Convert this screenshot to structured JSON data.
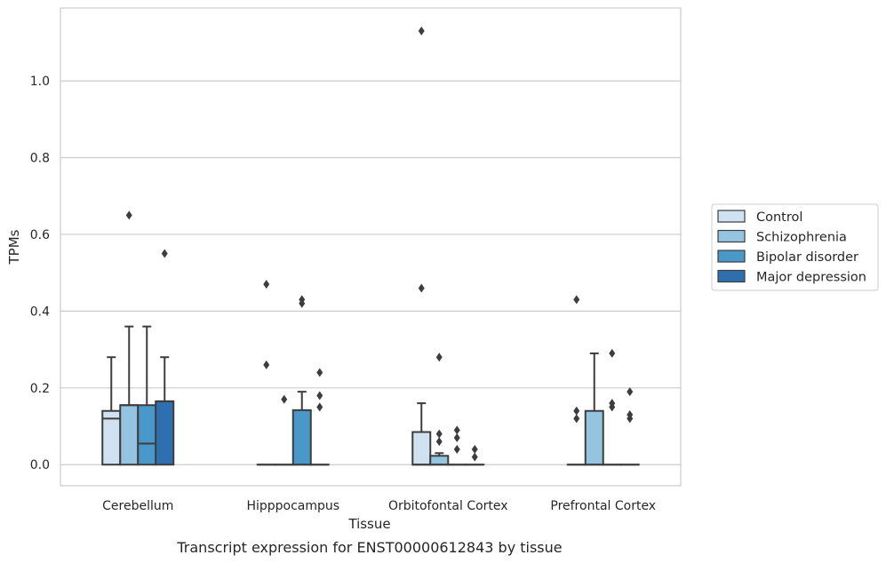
{
  "caption": "Transcript expression for ENST00000612843 by tissue",
  "colors": {
    "Control": "#d0e1f2",
    "Schizophrenia": "#94c4df",
    "Bipolar disorder": "#4a98c9",
    "Major depression": "#2e6fb0",
    "grid": "#cccccc",
    "line": "#3d3d3d",
    "frame": "#cccccc"
  },
  "chart_data": {
    "type": "box",
    "xlabel": "Tissue",
    "ylabel": "TPMs",
    "ylim": [
      -0.055,
      1.19
    ],
    "yticks": [
      0.0,
      0.2,
      0.4,
      0.6,
      0.8,
      1.0
    ],
    "ytick_labels": [
      "0.0",
      "0.2",
      "0.4",
      "0.6",
      "0.8",
      "1.0"
    ],
    "grid": true,
    "legend_position": "right",
    "categories": [
      "Cerebellum",
      "Hipppocampus",
      "Orbitofontal Cortex",
      "Prefrontal Cortex"
    ],
    "hue_order": [
      "Control",
      "Schizophrenia",
      "Bipolar disorder",
      "Major depression"
    ],
    "boxes": [
      {
        "category": "Cerebellum",
        "series": "Control",
        "q1": 0.0,
        "median": 0.12,
        "q3": 0.14,
        "whisker_low": 0.0,
        "whisker_high": 0.28,
        "outliers": []
      },
      {
        "category": "Cerebellum",
        "series": "Schizophrenia",
        "q1": 0.0,
        "median": 0.155,
        "q3": 0.155,
        "whisker_low": 0.0,
        "whisker_high": 0.36,
        "outliers": [
          0.65
        ]
      },
      {
        "category": "Cerebellum",
        "series": "Bipolar disorder",
        "q1": 0.0,
        "median": 0.055,
        "q3": 0.155,
        "whisker_low": 0.0,
        "whisker_high": 0.36,
        "outliers": []
      },
      {
        "category": "Cerebellum",
        "series": "Major depression",
        "q1": 0.0,
        "median": 0.165,
        "q3": 0.165,
        "whisker_low": 0.0,
        "whisker_high": 0.28,
        "outliers": [
          0.55
        ]
      },
      {
        "category": "Hipppocampus",
        "series": "Control",
        "q1": 0.0,
        "median": 0.0,
        "q3": 0.0,
        "whisker_low": 0.0,
        "whisker_high": 0.0,
        "outliers": [
          0.26,
          0.47
        ]
      },
      {
        "category": "Hipppocampus",
        "series": "Schizophrenia",
        "q1": 0.0,
        "median": 0.0,
        "q3": 0.0,
        "whisker_low": 0.0,
        "whisker_high": 0.0,
        "outliers": [
          0.17
        ]
      },
      {
        "category": "Hipppocampus",
        "series": "Bipolar disorder",
        "q1": 0.0,
        "median": 0.0,
        "q3": 0.142,
        "whisker_low": 0.0,
        "whisker_high": 0.19,
        "outliers": [
          0.42,
          0.43
        ]
      },
      {
        "category": "Hipppocampus",
        "series": "Major depression",
        "q1": 0.0,
        "median": 0.0,
        "q3": 0.0,
        "whisker_low": 0.0,
        "whisker_high": 0.0,
        "outliers": [
          0.15,
          0.18,
          0.24
        ]
      },
      {
        "category": "Orbitofontal Cortex",
        "series": "Control",
        "q1": 0.0,
        "median": 0.0,
        "q3": 0.085,
        "whisker_low": 0.0,
        "whisker_high": 0.16,
        "outliers": [
          0.46,
          1.13
        ]
      },
      {
        "category": "Orbitofontal Cortex",
        "series": "Schizophrenia",
        "q1": 0.0,
        "median": 0.0,
        "q3": 0.023,
        "whisker_low": 0.0,
        "whisker_high": 0.03,
        "outliers": [
          0.06,
          0.08,
          0.28
        ]
      },
      {
        "category": "Orbitofontal Cortex",
        "series": "Bipolar disorder",
        "q1": 0.0,
        "median": 0.0,
        "q3": 0.0,
        "whisker_low": 0.0,
        "whisker_high": 0.0,
        "outliers": [
          0.04,
          0.07,
          0.09
        ]
      },
      {
        "category": "Orbitofontal Cortex",
        "series": "Major depression",
        "q1": 0.0,
        "median": 0.0,
        "q3": 0.0,
        "whisker_low": 0.0,
        "whisker_high": 0.0,
        "outliers": [
          0.02,
          0.04
        ]
      },
      {
        "category": "Prefrontal Cortex",
        "series": "Control",
        "q1": 0.0,
        "median": 0.0,
        "q3": 0.0,
        "whisker_low": 0.0,
        "whisker_high": 0.0,
        "outliers": [
          0.12,
          0.14,
          0.43
        ]
      },
      {
        "category": "Prefrontal Cortex",
        "series": "Schizophrenia",
        "q1": 0.0,
        "median": 0.0,
        "q3": 0.14,
        "whisker_low": 0.0,
        "whisker_high": 0.29,
        "outliers": []
      },
      {
        "category": "Prefrontal Cortex",
        "series": "Bipolar disorder",
        "q1": 0.0,
        "median": 0.0,
        "q3": 0.0,
        "whisker_low": 0.0,
        "whisker_high": 0.0,
        "outliers": [
          0.15,
          0.16,
          0.29
        ]
      },
      {
        "category": "Prefrontal Cortex",
        "series": "Major depression",
        "q1": 0.0,
        "median": 0.0,
        "q3": 0.0,
        "whisker_low": 0.0,
        "whisker_high": 0.0,
        "outliers": [
          0.12,
          0.13,
          0.19
        ]
      }
    ]
  }
}
